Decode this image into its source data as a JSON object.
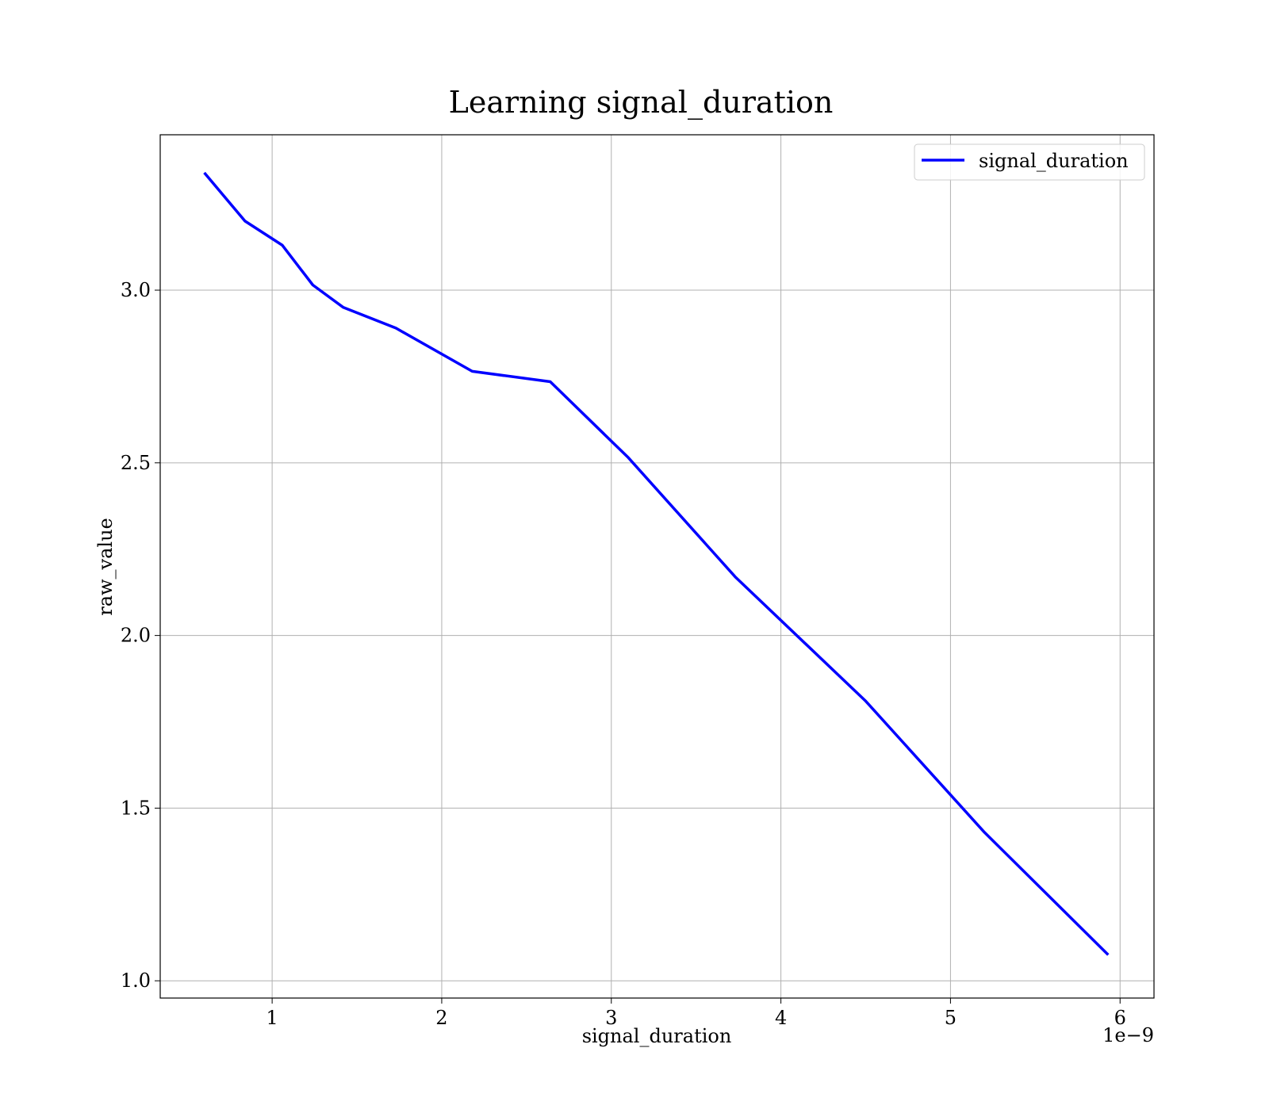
{
  "chart_data": {
    "type": "line",
    "title": "Learning signal_duration",
    "xlabel": "signal_duration",
    "ylabel": "raw_value",
    "x_scale_label": "1e−9",
    "xlim": [
      0.34,
      6.2
    ],
    "ylim": [
      0.95,
      3.45
    ],
    "x_ticks": [
      1,
      2,
      3,
      4,
      5,
      6
    ],
    "x_tick_labels": [
      "1",
      "2",
      "3",
      "4",
      "5",
      "6"
    ],
    "y_ticks": [
      1.0,
      1.5,
      2.0,
      2.5,
      3.0
    ],
    "y_tick_labels": [
      "1.0",
      "1.5",
      "2.0",
      "2.5",
      "3.0"
    ],
    "grid": true,
    "legend_position": "top-right",
    "series": [
      {
        "name": "signal_duration",
        "color": "#0000ff",
        "x": [
          0.6,
          0.84,
          1.06,
          1.24,
          1.42,
          1.73,
          2.18,
          2.64,
          3.1,
          3.73,
          4.5,
          5.2,
          5.93
        ],
        "y": [
          3.34,
          3.2,
          3.13,
          3.015,
          2.95,
          2.89,
          2.765,
          2.735,
          2.515,
          2.17,
          1.81,
          1.43,
          1.075
        ]
      }
    ]
  }
}
